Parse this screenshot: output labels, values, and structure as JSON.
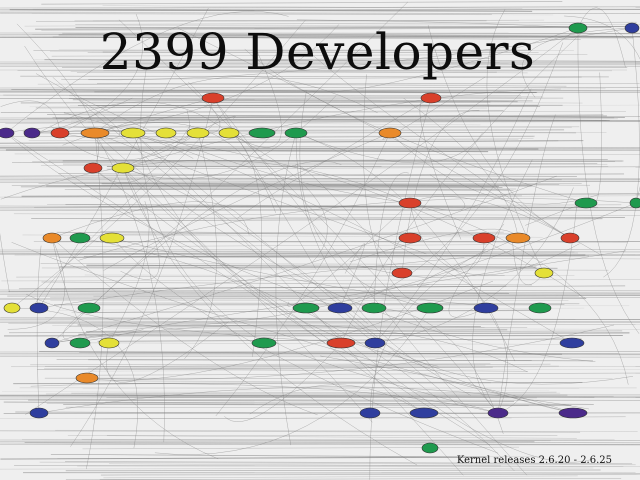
{
  "slide": {
    "title": "2399 Developers",
    "caption": "Kernel releases 2.6.20 - 2.6.25"
  },
  "colors": {
    "background": "#efefef",
    "lines": "#7a7a7a",
    "node_red": "#d9402b",
    "node_orange": "#e98a2a",
    "node_yellow": "#e4e038",
    "node_green": "#1f9a4e",
    "node_blue": "#2f3e9e",
    "node_purple": "#4b2a8a"
  }
}
